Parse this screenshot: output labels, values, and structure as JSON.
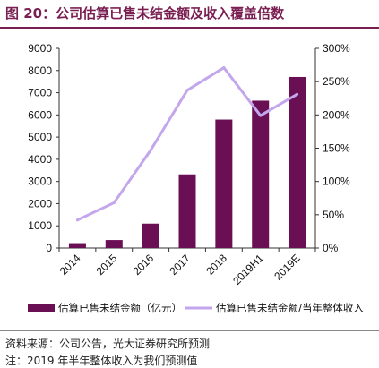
{
  "figure": {
    "title": "图 20：公司估算已售未结金额及收入覆盖倍数",
    "source": "资料来源：公司公告，光大证券研究所预测",
    "note": "注：2019 年半年整体收入为我们预测值"
  },
  "chart_data": {
    "type": "bar+line",
    "categories": [
      "2014",
      "2015",
      "2016",
      "2017",
      "2018",
      "2019H1",
      "2019E"
    ],
    "series": [
      {
        "name": "估算已售未结金额（亿元）",
        "type": "bar",
        "axis": "left",
        "color": "#6b0f55",
        "values": [
          220,
          360,
          1100,
          3320,
          5790,
          6640,
          7710
        ]
      },
      {
        "name": "估算已售未结金额/当年整体收入",
        "type": "line",
        "axis": "right",
        "color": "#c3a6ec",
        "values": [
          0.42,
          0.68,
          1.47,
          2.37,
          2.71,
          1.99,
          2.31
        ]
      }
    ],
    "yleft": {
      "min": 0,
      "max": 9000,
      "ticks": [
        "0",
        "1000",
        "2000",
        "3000",
        "4000",
        "5000",
        "6000",
        "7000",
        "8000",
        "9000"
      ]
    },
    "yright": {
      "min": 0,
      "max": 3,
      "ticks": [
        "0%",
        "50%",
        "100%",
        "150%",
        "200%",
        "250%",
        "300%"
      ]
    },
    "grid": false,
    "legend": "bottom"
  }
}
